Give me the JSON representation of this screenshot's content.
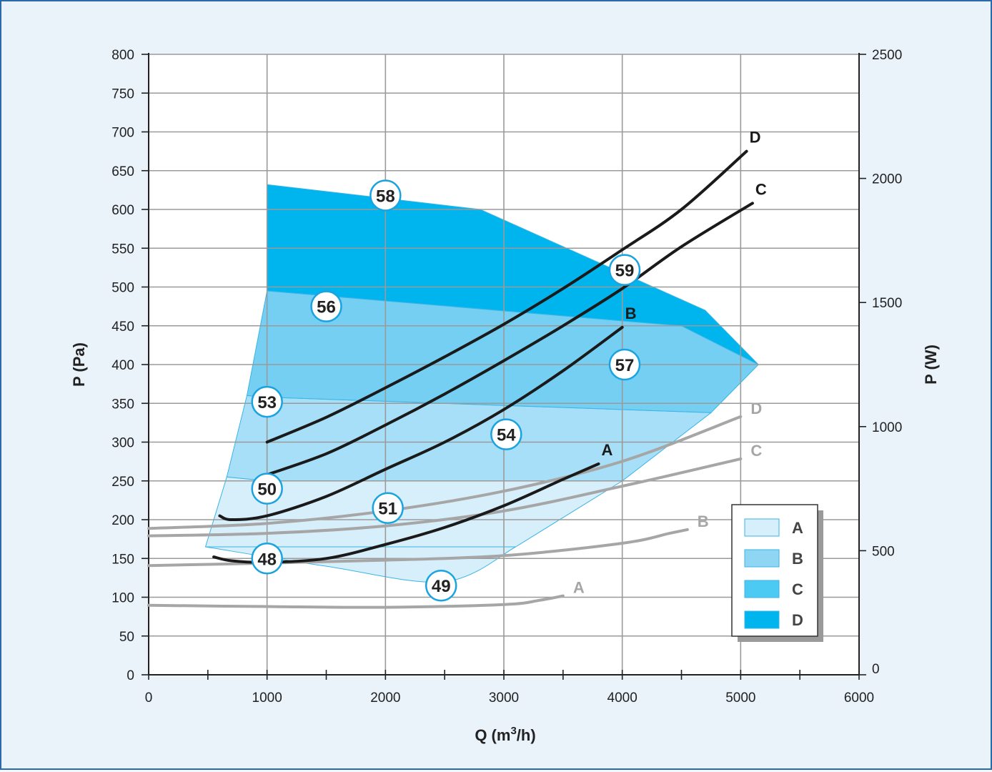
{
  "chart_data": {
    "type": "line",
    "xlabel": "Q (m³/h)",
    "ylabel_left": "P (Pa)",
    "ylabel_right": "P (W)",
    "xlim": [
      0,
      6000
    ],
    "ylim_left": [
      0,
      800
    ],
    "ylim_right": [
      0,
      2500
    ],
    "x_ticks": [
      "0",
      "1000",
      "2000",
      "3000",
      "4000",
      "5000",
      "6000"
    ],
    "y_left_ticks": [
      "0",
      "50",
      "100",
      "150",
      "200",
      "250",
      "300",
      "350",
      "400",
      "450",
      "500",
      "550",
      "600",
      "650",
      "700",
      "750",
      "800"
    ],
    "y_right_ticks": [
      "0",
      "500",
      "1000",
      "1500",
      "2000",
      "2500"
    ],
    "grid": true,
    "legend": {
      "placement": "bottom-right",
      "entries": [
        {
          "name": "A",
          "color": "#d6effb"
        },
        {
          "name": "B",
          "color": "#8fd6f5"
        },
        {
          "name": "C",
          "color": "#4ccaf3"
        },
        {
          "name": "D",
          "color": "#00b4ee"
        }
      ]
    },
    "operating_regions": [
      {
        "name": "A",
        "color": "#d6effb",
        "points": [
          [
            480,
            165
          ],
          [
            3100,
            165
          ],
          [
            4000,
            250
          ],
          [
            1000,
            250
          ],
          [
            660,
            255
          ]
        ]
      },
      {
        "name": "B",
        "color": "#a6dff7",
        "points": [
          [
            660,
            255
          ],
          [
            1000,
            250
          ],
          [
            4000,
            250
          ],
          [
            4750,
            338
          ],
          [
            1000,
            358
          ],
          [
            830,
            360
          ]
        ]
      },
      {
        "name": "C",
        "color": "#74cff3",
        "points": [
          [
            830,
            360
          ],
          [
            1000,
            358
          ],
          [
            4750,
            338
          ],
          [
            5150,
            400
          ],
          [
            4500,
            450
          ],
          [
            1000,
            495
          ]
        ]
      },
      {
        "name": "D",
        "color": "#00b4ee",
        "points": [
          [
            1000,
            495
          ],
          [
            4500,
            450
          ],
          [
            5150,
            400
          ],
          [
            4700,
            470
          ],
          [
            2800,
            600
          ],
          [
            1000,
            632
          ]
        ]
      }
    ],
    "region_outline": [
      [
        480,
        165
      ],
      [
        3100,
        165
      ],
      [
        4000,
        250
      ],
      [
        4750,
        338
      ],
      [
        5150,
        400
      ],
      [
        4700,
        470
      ],
      [
        2800,
        600
      ],
      [
        1000,
        632
      ],
      [
        830,
        360
      ],
      [
        660,
        255
      ]
    ],
    "region_bottom": [
      [
        480,
        165
      ],
      [
        1500,
        140
      ],
      [
        2500,
        120
      ],
      [
        3100,
        165
      ]
    ],
    "pressure_curves": [
      {
        "name": "A",
        "color": "#1a1a1a",
        "points": [
          [
            550,
            152
          ],
          [
            700,
            147
          ],
          [
            1000,
            145
          ],
          [
            1500,
            150
          ],
          [
            2000,
            168
          ],
          [
            2500,
            190
          ],
          [
            3000,
            218
          ],
          [
            3500,
            252
          ],
          [
            3800,
            272
          ]
        ]
      },
      {
        "name": "B",
        "color": "#1a1a1a",
        "points": [
          [
            600,
            205
          ],
          [
            700,
            200
          ],
          [
            1000,
            205
          ],
          [
            1500,
            230
          ],
          [
            2000,
            265
          ],
          [
            2500,
            300
          ],
          [
            3000,
            342
          ],
          [
            3500,
            392
          ],
          [
            4000,
            448
          ]
        ]
      },
      {
        "name": "C",
        "color": "#1a1a1a",
        "points": [
          [
            1000,
            258
          ],
          [
            1500,
            285
          ],
          [
            2000,
            322
          ],
          [
            2500,
            362
          ],
          [
            3000,
            405
          ],
          [
            3500,
            450
          ],
          [
            4000,
            498
          ],
          [
            4500,
            552
          ],
          [
            5100,
            608
          ]
        ]
      },
      {
        "name": "D",
        "color": "#1a1a1a",
        "points": [
          [
            1000,
            300
          ],
          [
            1500,
            332
          ],
          [
            2000,
            370
          ],
          [
            2500,
            410
          ],
          [
            3000,
            452
          ],
          [
            3500,
            498
          ],
          [
            4000,
            548
          ],
          [
            4500,
            600
          ],
          [
            5050,
            675
          ]
        ]
      }
    ],
    "power_curves": [
      {
        "name": "A",
        "color": "#a6a6a6",
        "points": [
          [
            0,
            280
          ],
          [
            1000,
            275
          ],
          [
            2000,
            272
          ],
          [
            3000,
            283
          ],
          [
            3300,
            300
          ],
          [
            3500,
            318
          ]
        ]
      },
      {
        "name": "B",
        "color": "#a6a6a6",
        "points": [
          [
            0,
            440
          ],
          [
            1000,
            450
          ],
          [
            2000,
            462
          ],
          [
            3000,
            480
          ],
          [
            4000,
            530
          ],
          [
            4400,
            570
          ],
          [
            4550,
            585
          ]
        ]
      },
      {
        "name": "C",
        "color": "#a6a6a6",
        "points": [
          [
            0,
            560
          ],
          [
            1000,
            570
          ],
          [
            2000,
            600
          ],
          [
            3000,
            660
          ],
          [
            4000,
            760
          ],
          [
            5000,
            870
          ]
        ]
      },
      {
        "name": "D",
        "color": "#a6a6a6",
        "points": [
          [
            0,
            590
          ],
          [
            1000,
            610
          ],
          [
            2000,
            660
          ],
          [
            3000,
            740
          ],
          [
            4000,
            860
          ],
          [
            5000,
            1040
          ]
        ]
      }
    ],
    "noise_markers": [
      {
        "label": "58",
        "x": 2000,
        "y": 618
      },
      {
        "label": "56",
        "x": 1500,
        "y": 475
      },
      {
        "label": "59",
        "x": 4020,
        "y": 522
      },
      {
        "label": "57",
        "x": 4020,
        "y": 400
      },
      {
        "label": "53",
        "x": 1000,
        "y": 352
      },
      {
        "label": "54",
        "x": 3020,
        "y": 310
      },
      {
        "label": "50",
        "x": 1000,
        "y": 240
      },
      {
        "label": "51",
        "x": 2020,
        "y": 215
      },
      {
        "label": "48",
        "x": 1000,
        "y": 150
      },
      {
        "label": "49",
        "x": 2470,
        "y": 115
      }
    ]
  }
}
